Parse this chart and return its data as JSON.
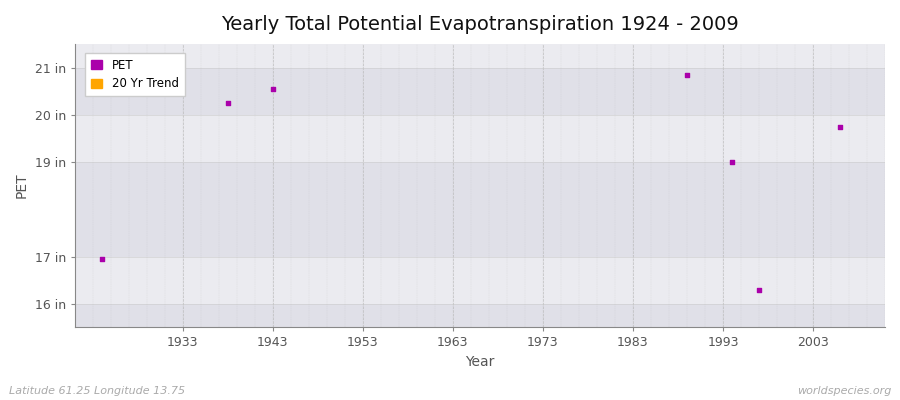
{
  "title": "Yearly Total Potential Evapotranspiration 1924 - 2009",
  "xlabel": "Year",
  "ylabel": "PET",
  "subtitle_left": "Latitude 61.25 Longitude 13.75",
  "subtitle_right": "worldspecies.org",
  "pet_color": "#aa00aa",
  "trend_color": "#ffa500",
  "fig_bg_color": "#ffffff",
  "plot_bg_color": "#f0f0f5",
  "band_color_light": "#ebebf0",
  "band_color_dark": "#e0e0e8",
  "data_points": [
    {
      "year": 1924,
      "value": 16.95
    },
    {
      "year": 1938,
      "value": 20.25
    },
    {
      "year": 1943,
      "value": 20.55
    },
    {
      "year": 1989,
      "value": 20.85
    },
    {
      "year": 1994,
      "value": 19.0
    },
    {
      "year": 1997,
      "value": 16.3
    },
    {
      "year": 2006,
      "value": 19.75
    }
  ],
  "ylim": [
    15.5,
    21.5
  ],
  "yticks": [
    16,
    17,
    19,
    20,
    21
  ],
  "ytick_labels": [
    "16 in",
    "17 in",
    "19 in",
    "20 in",
    "21 in"
  ],
  "xlim": [
    1921,
    2011
  ],
  "xticks": [
    1933,
    1943,
    1953,
    1963,
    1973,
    1983,
    1993,
    2003
  ],
  "grid_color": "#cccccc",
  "vgrid_color": "#bbbbbb",
  "title_fontsize": 14,
  "axis_fontsize": 9,
  "marker_size": 3
}
